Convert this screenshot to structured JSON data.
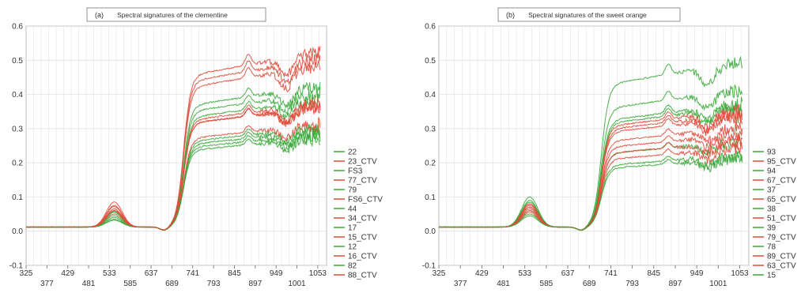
{
  "chart_data": [
    {
      "type": "line",
      "panel_label": "(a)",
      "title": "Spectral signatures of the clementine",
      "xlabel": "",
      "ylabel": "",
      "x_ticks": [
        325,
        377,
        429,
        481,
        533,
        585,
        637,
        689,
        741,
        793,
        845,
        897,
        949,
        1001,
        1053
      ],
      "xlim": [
        325,
        1075
      ],
      "ylim": [
        -0.1,
        0.6
      ],
      "y_ticks": [
        -0.1,
        0.0,
        0.1,
        0.2,
        0.3,
        0.4,
        0.5,
        0.6
      ],
      "y_tick_labels": [
        "-0.1",
        "0.0",
        "0.1",
        "0.2",
        "0.3",
        "0.4",
        "0.5",
        "0.6"
      ],
      "grid": true,
      "legend_placement": "right",
      "series": [
        {
          "name": "22",
          "color": "#3aa83a",
          "nir": 0.42,
          "green_peak": 0.06
        },
        {
          "name": "23_CTV",
          "color": "#e04a3a",
          "nir": 0.5,
          "green_peak": 0.072
        },
        {
          "name": "FS3",
          "color": "#3aa83a",
          "nir": 0.38,
          "green_peak": 0.055
        },
        {
          "name": "77_CTV",
          "color": "#e04a3a",
          "nir": 0.36,
          "green_peak": 0.06
        },
        {
          "name": "79",
          "color": "#3aa83a",
          "nir": 0.4,
          "green_peak": 0.058
        },
        {
          "name": "FS6_CTV",
          "color": "#e04a3a",
          "nir": 0.52,
          "green_peak": 0.085
        },
        {
          "name": "44",
          "color": "#3aa83a",
          "nir": 0.29,
          "green_peak": 0.04
        },
        {
          "name": "34_CTV",
          "color": "#e04a3a",
          "nir": 0.36,
          "green_peak": 0.065
        },
        {
          "name": "17",
          "color": "#3aa83a",
          "nir": 0.3,
          "green_peak": 0.045
        },
        {
          "name": "15_CTV",
          "color": "#e04a3a",
          "nir": 0.31,
          "green_peak": 0.05
        },
        {
          "name": "12",
          "color": "#3aa83a",
          "nir": 0.27,
          "green_peak": 0.035
        },
        {
          "name": "16_CTV",
          "color": "#e04a3a",
          "nir": 0.48,
          "green_peak": 0.075
        },
        {
          "name": "82",
          "color": "#3aa83a",
          "nir": 0.28,
          "green_peak": 0.032
        },
        {
          "name": "88_CTV",
          "color": "#e04a3a",
          "nir": 0.37,
          "green_peak": 0.06
        }
      ]
    },
    {
      "type": "line",
      "panel_label": "(b)",
      "title": "Spectral signatures of the sweet orange",
      "xlabel": "",
      "ylabel": "",
      "x_ticks": [
        325,
        377,
        429,
        481,
        533,
        585,
        637,
        689,
        741,
        793,
        845,
        897,
        949,
        1001,
        1053
      ],
      "xlim": [
        325,
        1075
      ],
      "ylim": [
        -0.1,
        0.6
      ],
      "y_ticks": [
        -0.1,
        0.0,
        0.1,
        0.2,
        0.3,
        0.4,
        0.5,
        0.6
      ],
      "y_tick_labels": [
        "-0.1",
        "0.0",
        "0.1",
        "0.2",
        "0.3",
        "0.4",
        "0.5",
        "0.6"
      ],
      "grid": true,
      "legend_placement": "right",
      "series": [
        {
          "name": "93",
          "color": "#3aa83a",
          "nir": 0.49,
          "green_peak": 0.1
        },
        {
          "name": "95_CTV",
          "color": "#e04a3a",
          "nir": 0.34,
          "green_peak": 0.08
        },
        {
          "name": "94",
          "color": "#3aa83a",
          "nir": 0.36,
          "green_peak": 0.085
        },
        {
          "name": "67_CTV",
          "color": "#e04a3a",
          "nir": 0.33,
          "green_peak": 0.075
        },
        {
          "name": "37",
          "color": "#3aa83a",
          "nir": 0.41,
          "green_peak": 0.09
        },
        {
          "name": "65_CTV",
          "color": "#e04a3a",
          "nir": 0.35,
          "green_peak": 0.08
        },
        {
          "name": "38",
          "color": "#3aa83a",
          "nir": 0.37,
          "green_peak": 0.07
        },
        {
          "name": "51_CTV",
          "color": "#e04a3a",
          "nir": 0.3,
          "green_peak": 0.065
        },
        {
          "name": "39",
          "color": "#3aa83a",
          "nir": 0.26,
          "green_peak": 0.06
        },
        {
          "name": "79_CTV",
          "color": "#e04a3a",
          "nir": 0.28,
          "green_peak": 0.07
        },
        {
          "name": "78",
          "color": "#3aa83a",
          "nir": 0.22,
          "green_peak": 0.05
        },
        {
          "name": "89_CTV",
          "color": "#e04a3a",
          "nir": 0.24,
          "green_peak": 0.055
        },
        {
          "name": "63_CTV",
          "color": "#e04a3a",
          "nir": 0.26,
          "green_peak": 0.06
        },
        {
          "name": "15",
          "color": "#3aa83a",
          "nir": 0.21,
          "green_peak": 0.045
        }
      ]
    }
  ]
}
